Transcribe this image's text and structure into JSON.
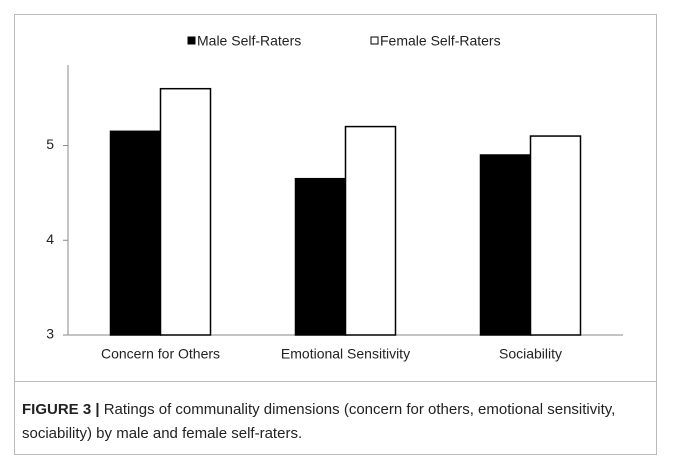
{
  "chart_data": {
    "type": "bar",
    "categories": [
      "Concern for Others",
      "Emotional Sensitivity",
      "Sociability"
    ],
    "series": [
      {
        "name": "Male Self-Raters",
        "color": "#000000",
        "values": [
          5.15,
          4.65,
          4.9
        ]
      },
      {
        "name": "Female Self-Raters",
        "color": "#ffffff",
        "values": [
          5.6,
          5.2,
          5.1
        ]
      }
    ],
    "ylim": [
      3,
      5.85
    ],
    "yticks": [
      3,
      4,
      5
    ],
    "grid": false,
    "legend": "top"
  },
  "caption": {
    "label": "FIGURE 3 |",
    "text": "Ratings of communality dimensions (concern for others, emotional sensitivity, sociability) by male and female self-raters."
  }
}
